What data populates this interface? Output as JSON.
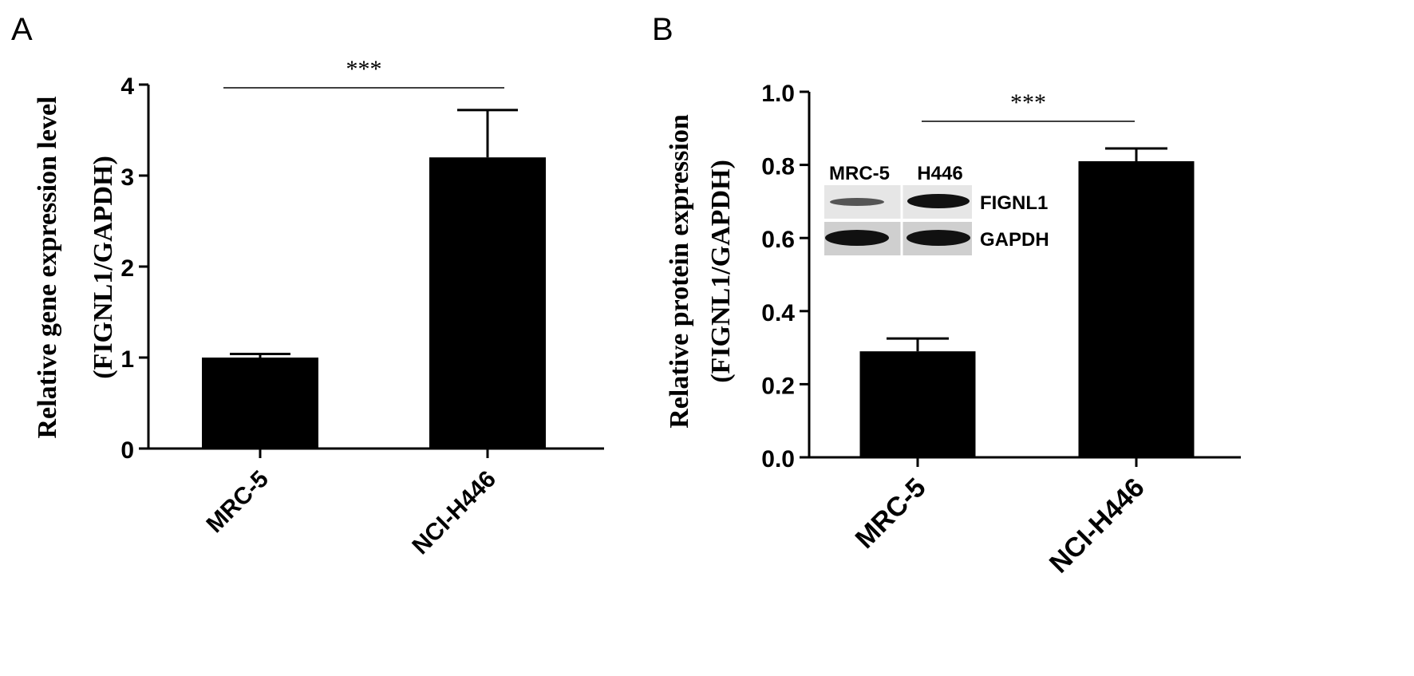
{
  "chart_data": [
    {
      "type": "bar",
      "panel": "A",
      "ylabel": "Relative gene expression level",
      "ylabel_line2": "(FIGNL1/GAPDH)",
      "categories": [
        "MRC-5",
        "NCI-H446"
      ],
      "values": [
        1.0,
        3.2
      ],
      "errors": [
        0.04,
        0.52
      ],
      "ylim": [
        0,
        4
      ],
      "yticks": [
        "0",
        "1",
        "2",
        "3",
        "4"
      ],
      "significance": "***",
      "grid": false,
      "bar_color": "#000000"
    },
    {
      "type": "bar",
      "panel": "B",
      "ylabel": "Relative protein expression",
      "ylabel_line2": "(FIGNL1/GAPDH)",
      "categories": [
        "MRC-5",
        "NCI-H446"
      ],
      "values": [
        0.29,
        0.81
      ],
      "errors": [
        0.035,
        0.035
      ],
      "ylim": [
        0,
        1.0
      ],
      "yticks": [
        "0.0",
        "0.2",
        "0.4",
        "0.6",
        "0.8",
        "1.0"
      ],
      "significance": "***",
      "grid": false,
      "bar_color": "#000000",
      "inset": {
        "lanes": [
          "MRC-5",
          "H446"
        ],
        "bands": [
          "FIGNL1",
          "GAPDH"
        ]
      }
    }
  ]
}
